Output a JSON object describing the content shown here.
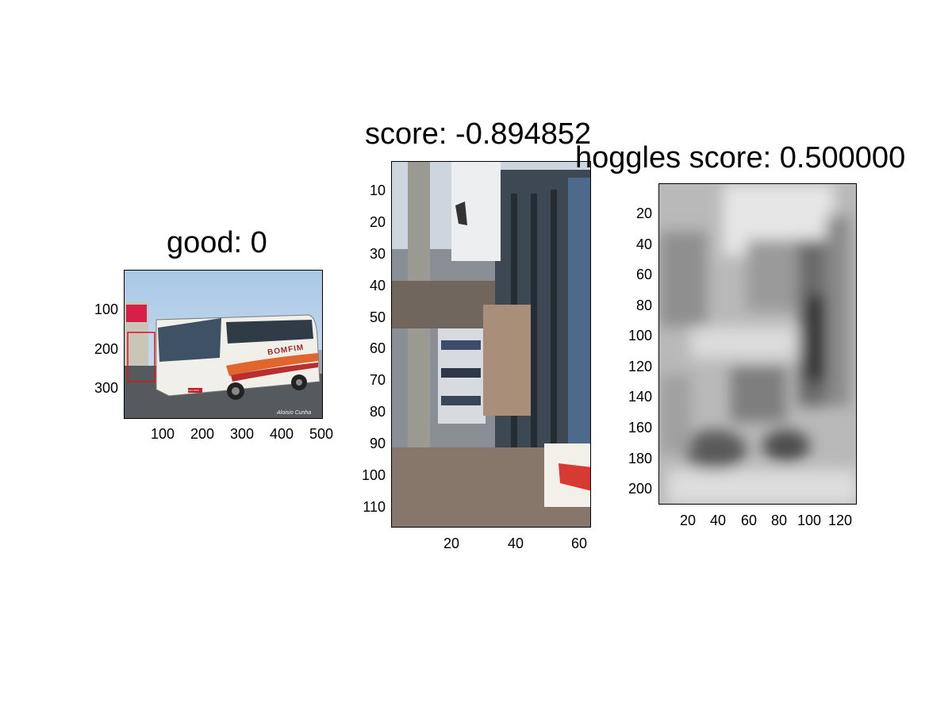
{
  "panels": [
    {
      "title": "good: 0",
      "yticks": [
        "100",
        "200",
        "300"
      ],
      "xticks": [
        "100",
        "200",
        "300",
        "400",
        "500"
      ],
      "image_text": {
        "banner": "BOMFIM",
        "plate": "AAA-0000",
        "watermark": "Aloisio Cunha"
      }
    },
    {
      "title": "score: -0.894852",
      "yticks": [
        "10",
        "20",
        "30",
        "40",
        "50",
        "60",
        "70",
        "80",
        "90",
        "100",
        "110"
      ],
      "xticks": [
        "20",
        "40",
        "60"
      ]
    },
    {
      "title": "hoggles score: 0.500000",
      "yticks": [
        "20",
        "40",
        "60",
        "80",
        "100",
        "120",
        "140",
        "160",
        "180",
        "200"
      ],
      "xticks": [
        "20",
        "40",
        "60",
        "80",
        "100",
        "120"
      ]
    }
  ]
}
